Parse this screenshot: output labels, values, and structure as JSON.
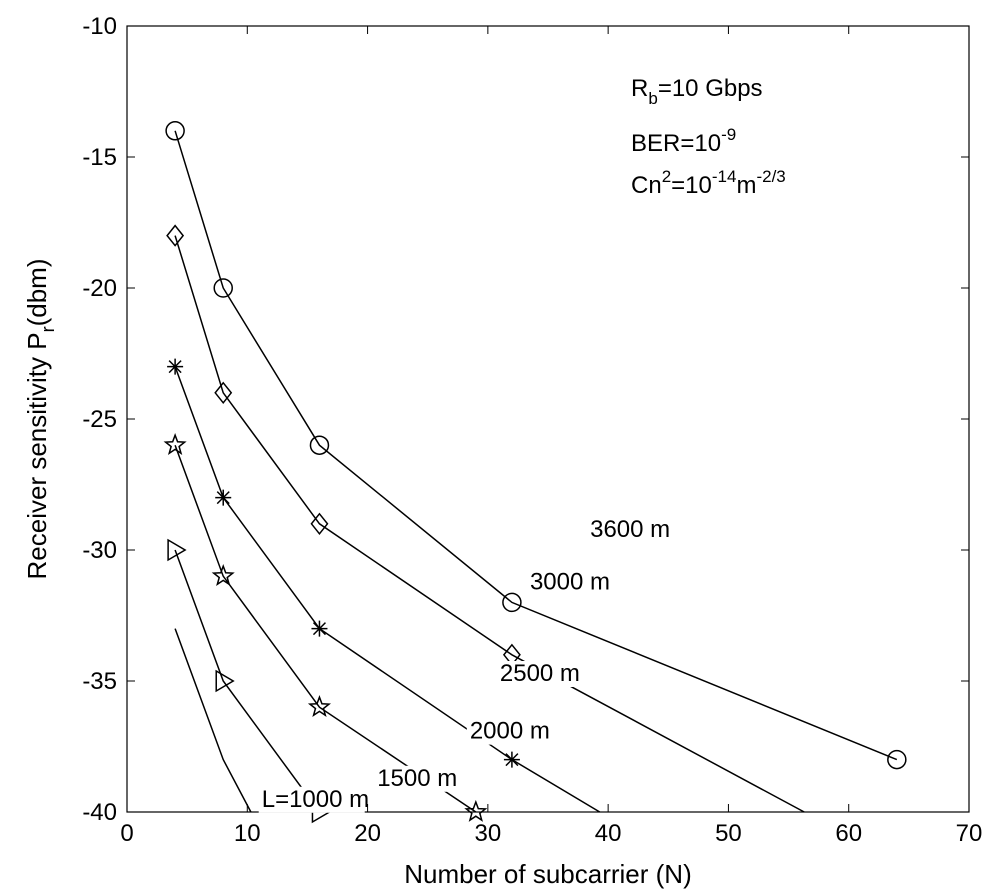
{
  "chart_data": {
    "type": "line",
    "title": "",
    "xlabel": "Number of subcarrier (N)",
    "ylabel": {
      "main": "Receiver sensitivity P",
      "sub": "r",
      "tail": "(dbm)"
    },
    "xlim": [
      0,
      70
    ],
    "ylim": [
      -40,
      -10
    ],
    "xticks": [
      0,
      10,
      20,
      30,
      40,
      50,
      60,
      70
    ],
    "yticks": [
      -10,
      -15,
      -20,
      -25,
      -30,
      -35,
      -40
    ],
    "grid": false,
    "series": [
      {
        "name": "3600 m",
        "marker": "circle",
        "points": [
          [
            4,
            -14
          ],
          [
            8,
            -20
          ],
          [
            16,
            -26
          ],
          [
            32,
            -32
          ],
          [
            64,
            -38
          ]
        ]
      },
      {
        "name": "3000 m",
        "marker": "diamond",
        "points": [
          [
            4,
            -18
          ],
          [
            8,
            -24
          ],
          [
            16,
            -29
          ],
          [
            32,
            -34
          ],
          [
            56.3,
            -40
          ]
        ]
      },
      {
        "name": "2500 m",
        "marker": "asterisk",
        "points": [
          [
            4,
            -23
          ],
          [
            8,
            -28
          ],
          [
            16,
            -33
          ],
          [
            32,
            -38
          ],
          [
            39.3,
            -40
          ]
        ]
      },
      {
        "name": "2000 m",
        "marker": "star",
        "points": [
          [
            4,
            -26
          ],
          [
            8,
            -31
          ],
          [
            16,
            -36
          ],
          [
            29,
            -40
          ]
        ]
      },
      {
        "name": "1500 m",
        "marker": "triangle-right",
        "points": [
          [
            4,
            -30
          ],
          [
            8,
            -35
          ],
          [
            16,
            -40
          ]
        ]
      },
      {
        "name": "L=1000 m",
        "marker": "none",
        "points": [
          [
            4,
            -33
          ],
          [
            8,
            -38
          ],
          [
            10.3,
            -40
          ]
        ]
      }
    ],
    "series_labels": [
      {
        "text": "3600 m",
        "x": 38.5,
        "y": -29.5
      },
      {
        "text": "3000 m",
        "x": 33.5,
        "y": -31.5
      },
      {
        "text": "2500 m",
        "x": 31,
        "y": -35
      },
      {
        "text": "2000 m",
        "x": 28.5,
        "y": -37.2
      },
      {
        "text": "1500 m",
        "x": 20.8,
        "y": -39
      },
      {
        "text": "L=1000 m",
        "x": 11.2,
        "y": -39.8
      }
    ],
    "annotations": [
      {
        "main": "R",
        "sub": "b",
        "tail": "=10 Gbps"
      },
      {
        "main": "BER=10",
        "sup": "-9"
      },
      {
        "main": "Cn",
        "sup": "2",
        "mid": "=10",
        "sup2": "-14",
        "mid2": "m",
        "sup3": "-2/3"
      }
    ]
  }
}
